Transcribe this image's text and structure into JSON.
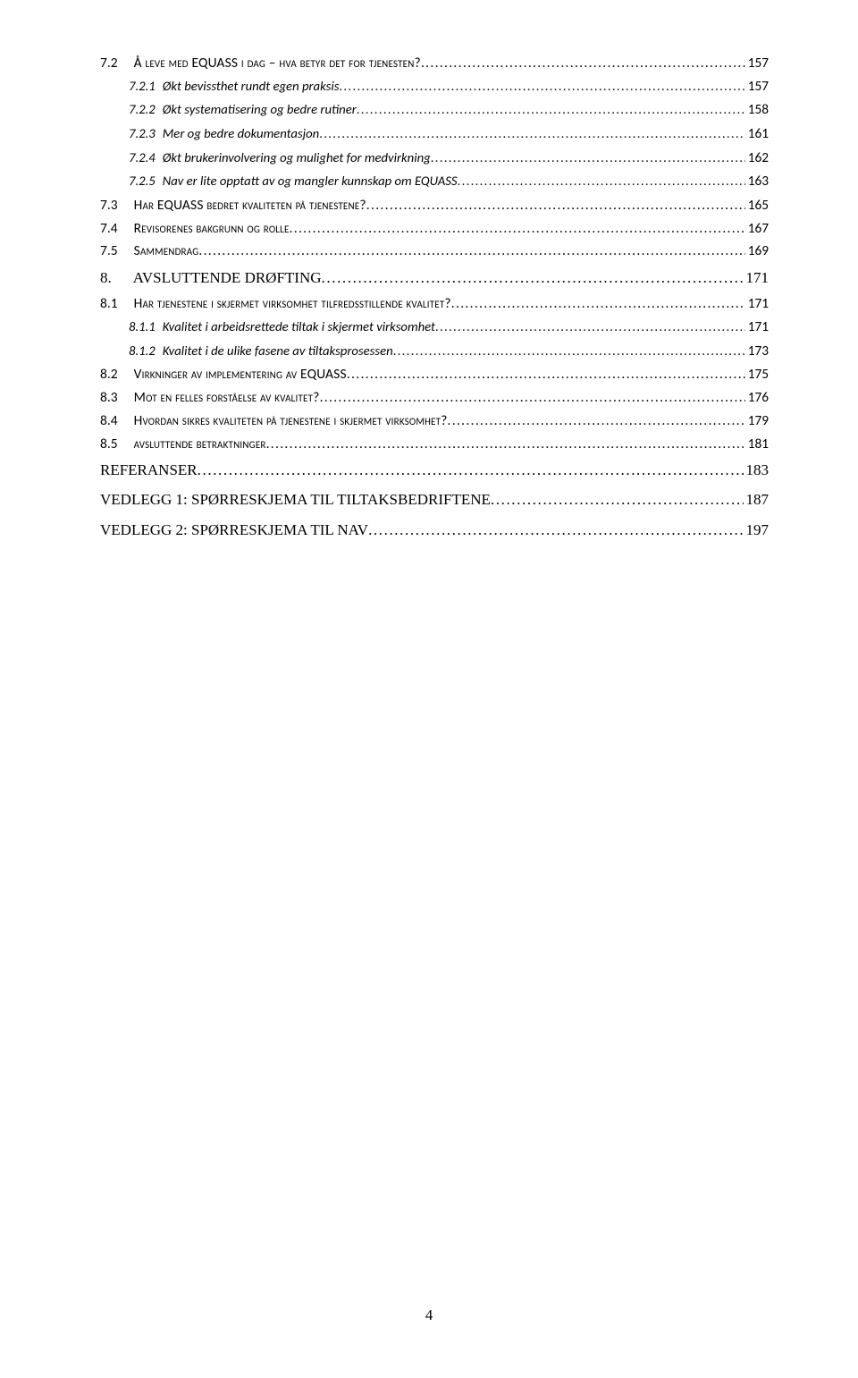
{
  "page_number": "4",
  "toc": [
    {
      "level": 2,
      "num": "7.2",
      "num_gap": "18px",
      "label": "Å leve med EQUASS i dag – hva betyr det for tjenesten?",
      "page": "157"
    },
    {
      "level": 3,
      "num": "7.2.1",
      "num_gap": "8px",
      "label": "Økt bevissthet rundt egen praksis",
      "page": "157"
    },
    {
      "level": 3,
      "num": "7.2.2",
      "num_gap": "8px",
      "label": "Økt systematisering og bedre rutiner",
      "page": "158"
    },
    {
      "level": 3,
      "num": "7.2.3",
      "num_gap": "8px",
      "label": "Mer og bedre dokumentasjon",
      "page": "161"
    },
    {
      "level": 3,
      "num": "7.2.4",
      "num_gap": "8px",
      "label": "Økt brukerinvolvering og mulighet for medvirkning",
      "page": "162"
    },
    {
      "level": 3,
      "num": "7.2.5",
      "num_gap": "8px",
      "label": "Nav er lite opptatt av og mangler kunnskap om EQUASS",
      "page": "163"
    },
    {
      "level": 2,
      "num": "7.3",
      "num_gap": "18px",
      "label": "Har EQUASS bedret kvaliteten på tjenestene?",
      "page": "165"
    },
    {
      "level": 2,
      "num": "7.4",
      "num_gap": "18px",
      "label": "Revisorenes bakgrunn og rolle",
      "page": "167"
    },
    {
      "level": 2,
      "num": "7.5",
      "num_gap": "18px",
      "label": "Sammendrag",
      "page": "169"
    },
    {
      "level": 1,
      "num": "8.",
      "num_gap": "24px",
      "label": "AVSLUTTENDE DRØFTING",
      "page": "171"
    },
    {
      "level": 2,
      "num": "8.1",
      "num_gap": "18px",
      "label": "Har tjenestene i skjermet virksomhet tilfredsstillende kvalitet?",
      "page": "171"
    },
    {
      "level": 3,
      "num": "8.1.1",
      "num_gap": "8px",
      "label": "Kvalitet i arbeidsrettede tiltak i skjermet virksomhet",
      "page": "171"
    },
    {
      "level": 3,
      "num": "8.1.2",
      "num_gap": "8px",
      "label": "Kvalitet i de ulike fasene av tiltaksprosessen",
      "page": "173"
    },
    {
      "level": 2,
      "num": "8.2",
      "num_gap": "18px",
      "label": "Virkninger av implementering av EQUASS",
      "page": "175"
    },
    {
      "level": 2,
      "num": "8.3",
      "num_gap": "18px",
      "label": "Mot en felles forståelse av kvalitet?",
      "page": "176"
    },
    {
      "level": 2,
      "num": "8.4",
      "num_gap": "18px",
      "label": "Hvordan sikres kvaliteten på tjenestene i skjermet virksomhet?",
      "page": "179"
    },
    {
      "level": 2,
      "num": "8.5",
      "num_gap": "18px",
      "label": "avsluttende betraktninger",
      "page": "181"
    },
    {
      "level": 0,
      "num": "",
      "num_gap": "0px",
      "label": "REFERANSER",
      "page": "183"
    },
    {
      "level": 0,
      "num": "",
      "num_gap": "0px",
      "label": "VEDLEGG 1: SPØRRESKJEMA TIL TILTAKSBEDRIFTENE",
      "page": "187"
    },
    {
      "level": 0,
      "num": "",
      "num_gap": "0px",
      "label": "VEDLEGG 2: SPØRRESKJEMA TIL NAV",
      "page": "197"
    }
  ]
}
